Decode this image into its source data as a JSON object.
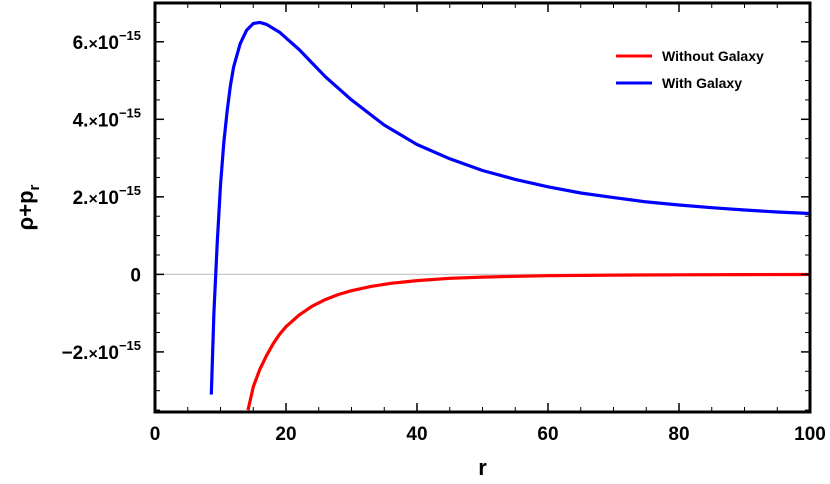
{
  "chart_data": {
    "type": "line",
    "xlabel": "r",
    "ylabel": {
      "base": "ρ+p",
      "subscript": "r"
    },
    "xlim": [
      0,
      100
    ],
    "ylim": [
      -3.55e-15,
      7e-15
    ],
    "x_ticks": [
      {
        "value": 0,
        "label": "0"
      },
      {
        "value": 20,
        "label": "20"
      },
      {
        "value": 40,
        "label": "40"
      },
      {
        "value": 60,
        "label": "60"
      },
      {
        "value": 80,
        "label": "80"
      },
      {
        "value": 100,
        "label": "100"
      }
    ],
    "y_ticks": [
      {
        "value": -2e-15,
        "mantissa": "−2.",
        "times": "×",
        "base": "10",
        "exponent": "−15"
      },
      {
        "value": 0,
        "mantissa": "0",
        "times": "",
        "base": "",
        "exponent": ""
      },
      {
        "value": 2e-15,
        "mantissa": "2.",
        "times": "×",
        "base": "10",
        "exponent": "−15"
      },
      {
        "value": 4e-15,
        "mantissa": "4.",
        "times": "×",
        "base": "10",
        "exponent": "−15"
      },
      {
        "value": 6e-15,
        "mantissa": "6.",
        "times": "×",
        "base": "10",
        "exponent": "−15"
      }
    ],
    "zero_line": true,
    "legend_position": "top-right",
    "series": [
      {
        "name": "Without Galaxy",
        "color": "#ff0000",
        "x": [
          14.2,
          15,
          16,
          17,
          18,
          19,
          20,
          22,
          24,
          26,
          28,
          30,
          33,
          36,
          40,
          45,
          50,
          55,
          60,
          70,
          80,
          90,
          100
        ],
        "y": [
          -3.5e-15,
          -2.9e-15,
          -2.45e-15,
          -2.1e-15,
          -1.8e-15,
          -1.55e-15,
          -1.35e-15,
          -1.05e-15,
          -8.2e-16,
          -6.5e-16,
          -5.2e-16,
          -4.2e-16,
          -3.1e-16,
          -2.3e-16,
          -1.6e-16,
          -1e-16,
          -7e-17,
          -5e-17,
          -3.5e-17,
          -2e-17,
          -1.2e-17,
          -7e-18,
          -4e-18
        ]
      },
      {
        "name": "With Galaxy",
        "color": "#0000ff",
        "x": [
          8.6,
          9,
          9.5,
          10,
          10.5,
          11,
          11.5,
          12,
          13,
          14,
          15,
          16,
          17,
          18,
          19,
          20,
          22,
          24,
          26,
          28,
          30,
          35,
          40,
          45,
          50,
          55,
          60,
          65,
          70,
          75,
          80,
          85,
          90,
          95,
          100
        ],
        "y": [
          -3.1e-15,
          -1e-15,
          8e-16,
          2.3e-15,
          3.4e-15,
          4.2e-15,
          4.85e-15,
          5.35e-15,
          5.95e-15,
          6.3e-15,
          6.47e-15,
          6.5e-15,
          6.45e-15,
          6.35e-15,
          6.25e-15,
          6.1e-15,
          5.8e-15,
          5.45e-15,
          5.1e-15,
          4.8e-15,
          4.5e-15,
          3.85e-15,
          3.35e-15,
          2.98e-15,
          2.68e-15,
          2.45e-15,
          2.26e-15,
          2.1e-15,
          1.98e-15,
          1.87e-15,
          1.79e-15,
          1.72e-15,
          1.66e-15,
          1.61e-15,
          1.57e-15
        ]
      }
    ]
  }
}
